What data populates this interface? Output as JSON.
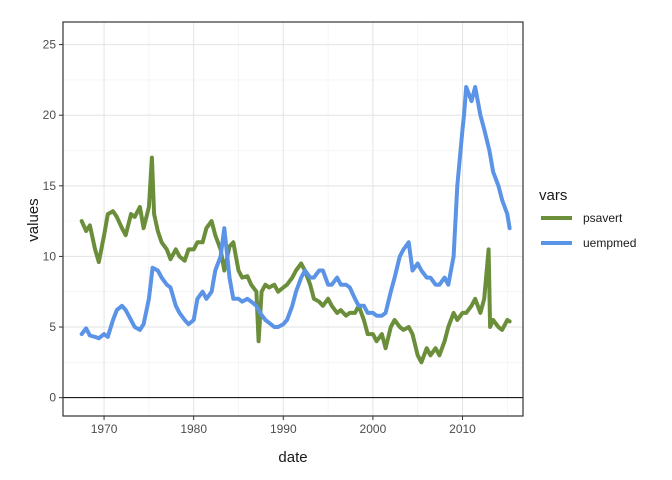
{
  "chart_data": {
    "type": "line",
    "xlabel": "date",
    "ylabel": "values",
    "xlim": [
      "1965-06-01",
      "2016-10-01"
    ],
    "ylim": [
      -1.3,
      26.6
    ],
    "x_ticks": [
      "1970",
      "1980",
      "1990",
      "2000",
      "2010"
    ],
    "y_ticks": [
      0,
      5,
      10,
      15,
      20,
      25
    ],
    "grid": true,
    "hline": 0,
    "legend": {
      "title": "vars",
      "position": "right"
    },
    "series": [
      {
        "name": "psavert",
        "color": "#6B8E3A",
        "x": [
          "1967-07",
          "1968-01",
          "1968-06",
          "1969-01",
          "1969-06",
          "1970-01",
          "1970-06",
          "1971-01",
          "1971-06",
          "1972-01",
          "1972-06",
          "1973-01",
          "1973-06",
          "1974-01",
          "1974-06",
          "1975-01",
          "1975-05",
          "1975-08",
          "1976-01",
          "1976-06",
          "1977-01",
          "1977-06",
          "1978-01",
          "1978-06",
          "1979-01",
          "1979-06",
          "1980-01",
          "1980-06",
          "1981-01",
          "1981-06",
          "1982-01",
          "1982-06",
          "1983-01",
          "1983-06",
          "1984-01",
          "1984-06",
          "1985-01",
          "1985-06",
          "1986-01",
          "1986-06",
          "1987-01",
          "1987-04",
          "1987-08",
          "1988-01",
          "1988-06",
          "1989-01",
          "1989-06",
          "1990-01",
          "1990-06",
          "1991-01",
          "1991-06",
          "1992-01",
          "1992-06",
          "1993-01",
          "1993-06",
          "1994-01",
          "1994-06",
          "1995-01",
          "1995-06",
          "1996-01",
          "1996-06",
          "1997-01",
          "1997-06",
          "1998-01",
          "1998-06",
          "1999-01",
          "1999-06",
          "2000-01",
          "2000-06",
          "2001-01",
          "2001-06",
          "2002-01",
          "2002-06",
          "2003-01",
          "2003-06",
          "2004-01",
          "2004-06",
          "2005-01",
          "2005-06",
          "2006-01",
          "2006-06",
          "2007-01",
          "2007-06",
          "2008-01",
          "2008-06",
          "2009-01",
          "2009-06",
          "2010-01",
          "2010-06",
          "2011-01",
          "2011-06",
          "2012-01",
          "2012-06",
          "2012-12",
          "2013-02",
          "2013-06",
          "2014-01",
          "2014-06",
          "2015-01",
          "2015-04"
        ],
        "values": [
          12.5,
          11.8,
          12.2,
          10.5,
          9.6,
          11.5,
          13.0,
          13.2,
          12.8,
          12.0,
          11.5,
          13.0,
          12.8,
          13.5,
          12.0,
          13.5,
          17.0,
          13.0,
          11.8,
          11.0,
          10.5,
          9.8,
          10.5,
          10.0,
          9.7,
          10.5,
          10.5,
          11.0,
          11.0,
          12.0,
          12.5,
          11.5,
          10.5,
          9.0,
          10.7,
          11.0,
          9.0,
          8.5,
          8.6,
          8.0,
          7.5,
          4.0,
          7.5,
          8.0,
          7.8,
          8.0,
          7.5,
          7.8,
          8.0,
          8.5,
          9.0,
          9.5,
          9.0,
          8.0,
          7.0,
          6.8,
          6.5,
          7.0,
          6.5,
          6.0,
          6.2,
          5.8,
          6.0,
          6.0,
          6.5,
          5.5,
          4.5,
          4.5,
          4.0,
          4.5,
          3.5,
          5.0,
          5.5,
          5.0,
          4.8,
          5.0,
          4.5,
          3.0,
          2.5,
          3.5,
          3.0,
          3.5,
          3.0,
          4.0,
          5.0,
          6.0,
          5.5,
          6.0,
          6.0,
          6.5,
          7.0,
          6.0,
          7.0,
          10.5,
          5.0,
          5.5,
          5.0,
          4.8,
          5.5,
          5.4
        ]
      },
      {
        "name": "uempmed",
        "color": "#5B93E6",
        "x": [
          "1967-07",
          "1968-01",
          "1968-06",
          "1969-01",
          "1969-06",
          "1970-01",
          "1970-06",
          "1971-01",
          "1971-06",
          "1972-01",
          "1972-06",
          "1973-01",
          "1973-06",
          "1974-01",
          "1974-06",
          "1975-01",
          "1975-06",
          "1976-01",
          "1976-06",
          "1977-01",
          "1977-06",
          "1978-01",
          "1978-06",
          "1979-01",
          "1979-06",
          "1980-01",
          "1980-06",
          "1981-01",
          "1981-06",
          "1982-01",
          "1982-06",
          "1983-01",
          "1983-06",
          "1984-01",
          "1984-06",
          "1985-01",
          "1985-06",
          "1986-01",
          "1986-06",
          "1987-01",
          "1987-06",
          "1988-01",
          "1988-06",
          "1989-01",
          "1989-06",
          "1990-01",
          "1990-06",
          "1991-01",
          "1991-06",
          "1992-01",
          "1992-06",
          "1993-01",
          "1993-06",
          "1994-01",
          "1994-06",
          "1995-01",
          "1995-06",
          "1996-01",
          "1996-06",
          "1997-01",
          "1997-06",
          "1998-01",
          "1998-06",
          "1999-01",
          "1999-06",
          "2000-01",
          "2000-06",
          "2001-01",
          "2001-06",
          "2002-01",
          "2002-06",
          "2003-01",
          "2003-06",
          "2004-01",
          "2004-06",
          "2005-01",
          "2005-06",
          "2006-01",
          "2006-06",
          "2007-01",
          "2007-06",
          "2008-01",
          "2008-06",
          "2009-01",
          "2009-06",
          "2010-01",
          "2010-03",
          "2010-06",
          "2011-01",
          "2011-06",
          "2012-01",
          "2012-06",
          "2013-01",
          "2013-06",
          "2014-01",
          "2014-06",
          "2015-01",
          "2015-04"
        ],
        "values": [
          4.5,
          4.9,
          4.4,
          4.3,
          4.2,
          4.5,
          4.3,
          5.5,
          6.2,
          6.5,
          6.2,
          5.5,
          5.0,
          4.8,
          5.2,
          7.0,
          9.2,
          9.0,
          8.5,
          8.0,
          7.8,
          6.5,
          6.0,
          5.5,
          5.2,
          5.5,
          7.0,
          7.5,
          7.0,
          7.5,
          9.0,
          10.0,
          12.0,
          8.5,
          7.0,
          7.0,
          6.8,
          7.0,
          6.8,
          6.5,
          6.0,
          5.5,
          5.3,
          5.0,
          5.0,
          5.2,
          5.5,
          6.5,
          7.5,
          8.5,
          9.0,
          8.5,
          8.5,
          9.0,
          9.0,
          8.0,
          8.0,
          8.5,
          8.0,
          8.0,
          7.8,
          7.0,
          6.5,
          6.5,
          6.0,
          6.0,
          5.8,
          5.8,
          6.0,
          7.5,
          8.5,
          10.0,
          10.5,
          11.0,
          9.0,
          9.5,
          9.0,
          8.5,
          8.5,
          8.0,
          8.0,
          8.5,
          8.0,
          10.0,
          15.0,
          19.0,
          20.0,
          22.0,
          21.0,
          22.0,
          20.0,
          19.0,
          17.5,
          16.0,
          15.0,
          14.0,
          13.0,
          12.0
        ]
      }
    ]
  }
}
